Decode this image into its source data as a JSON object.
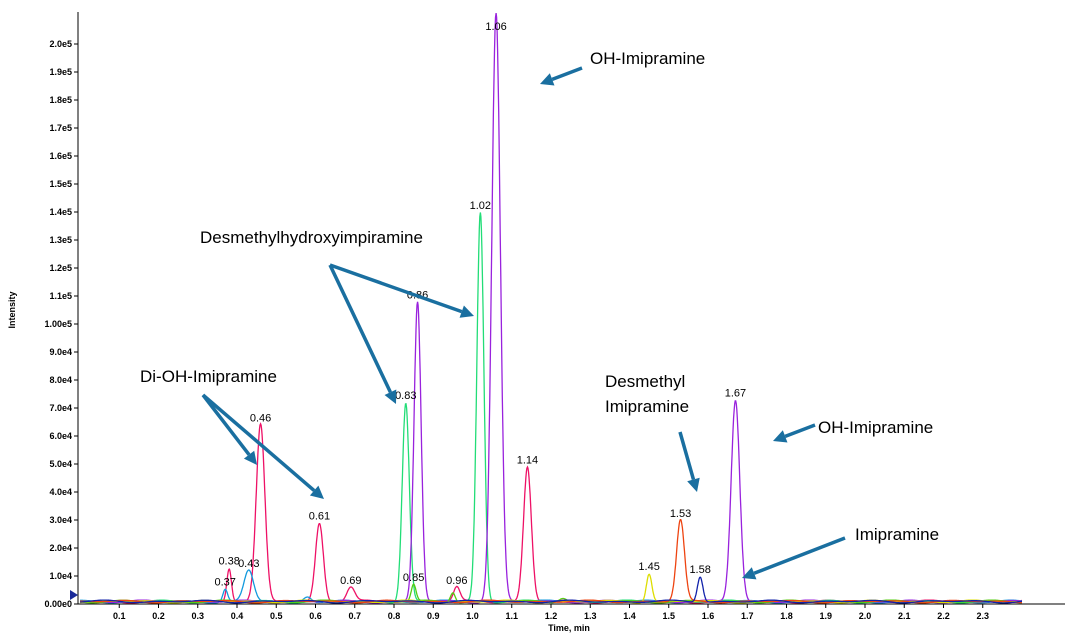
{
  "chart_data": {
    "type": "line",
    "xlabel": "Time, min",
    "ylabel": "Intensity",
    "xlim": [
      0.0,
      2.4
    ],
    "ylim": [
      0,
      208000
    ],
    "x_ticks": [
      "0.1",
      "0.2",
      "0.3",
      "0.4",
      "0.5",
      "0.6",
      "0.7",
      "0.8",
      "0.9",
      "1.0",
      "1.1",
      "1.2",
      "1.3",
      "1.4",
      "1.5",
      "1.6",
      "1.7",
      "1.8",
      "1.9",
      "2.0",
      "2.1",
      "2.2",
      "2.3"
    ],
    "y_ticks": [
      "0.00e0",
      "1.0e4",
      "2.0e4",
      "3.0e4",
      "4.0e4",
      "5.0e4",
      "6.0e4",
      "7.0e4",
      "8.0e4",
      "9.0e4",
      "1.00e5",
      "1.1e5",
      "1.2e5",
      "1.3e5",
      "1.4e5",
      "1.5e5",
      "1.6e5",
      "1.7e5",
      "1.8e5",
      "1.9e5",
      "2.0e5"
    ],
    "series": [
      {
        "color": "#ee1166",
        "peaks": [
          {
            "t": 0.38,
            "h": 12000,
            "w": 0.006,
            "label": "0.38"
          },
          {
            "t": 0.46,
            "h": 63000,
            "w": 0.011,
            "label": "0.46"
          },
          {
            "t": 0.61,
            "h": 28000,
            "w": 0.01,
            "label": "0.61"
          },
          {
            "t": 0.69,
            "h": 5000,
            "w": 0.01,
            "label": "0.69"
          },
          {
            "t": 0.96,
            "h": 5000,
            "w": 0.008,
            "label": "0.96"
          },
          {
            "t": 1.14,
            "h": 48000,
            "w": 0.01,
            "label": "1.14"
          }
        ]
      },
      {
        "color": "#1199dd",
        "peaks": [
          {
            "t": 0.37,
            "h": 4500,
            "w": 0.006,
            "label": "0.37"
          },
          {
            "t": 0.43,
            "h": 11000,
            "w": 0.012,
            "label": "0.43"
          },
          {
            "t": 0.58,
            "h": 2000,
            "w": 0.01
          }
        ]
      },
      {
        "color": "#22dd77",
        "peaks": [
          {
            "t": 0.83,
            "h": 71000,
            "w": 0.009,
            "label": "0.83"
          },
          {
            "t": 1.02,
            "h": 139000,
            "w": 0.009,
            "label": "1.02"
          }
        ]
      },
      {
        "color": "#9922dd",
        "peaks": [
          {
            "t": 0.86,
            "h": 107000,
            "w": 0.009,
            "label": "0.86"
          },
          {
            "t": 1.06,
            "h": 210000,
            "w": 0.011,
            "label": "1.06"
          },
          {
            "t": 1.67,
            "h": 72000,
            "w": 0.011,
            "label": "1.67"
          }
        ]
      },
      {
        "color": "#55cc11",
        "peaks": [
          {
            "t": 0.85,
            "h": 6000,
            "w": 0.006,
            "label": "0.85"
          },
          {
            "t": 0.95,
            "h": 3500,
            "w": 0.006
          },
          {
            "t": 1.23,
            "h": 1500,
            "w": 0.01
          }
        ]
      },
      {
        "color": "#dddd00",
        "peaks": [
          {
            "t": 1.45,
            "h": 10000,
            "w": 0.007,
            "label": "1.45"
          }
        ]
      },
      {
        "color": "#ee4411",
        "peaks": [
          {
            "t": 1.53,
            "h": 29000,
            "w": 0.01,
            "label": "1.53"
          }
        ]
      },
      {
        "color": "#1122aa",
        "peaks": [
          {
            "t": 1.58,
            "h": 9000,
            "w": 0.007,
            "label": "1.58"
          }
        ]
      }
    ],
    "annotations": [
      {
        "text": "OH-Imipramine"
      },
      {
        "text": "Desmethylhydroxyimpiramine"
      },
      {
        "text": "Di-OH-Imipramine"
      },
      {
        "text": "Desmethyl"
      },
      {
        "text": "Imipramine"
      },
      {
        "text": "OH-Imipramine"
      },
      {
        "text": "Imipramine"
      }
    ],
    "arrow_color": "#1a6fa0"
  }
}
